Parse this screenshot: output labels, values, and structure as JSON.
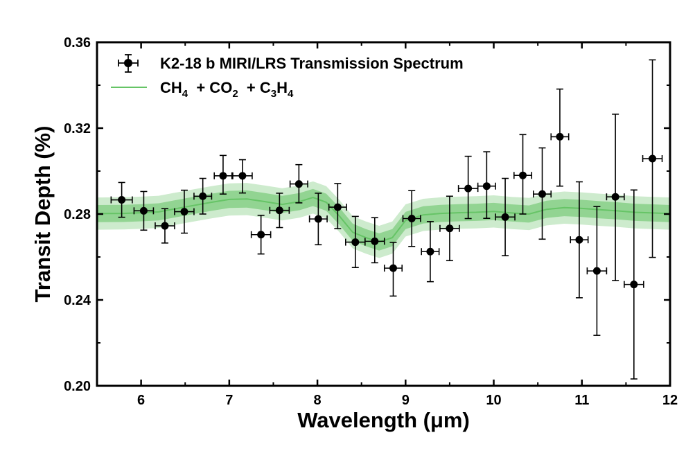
{
  "chart_data": {
    "type": "scatter",
    "xlabel": "Wavelength (μm)",
    "ylabel": "Transit Depth (%)",
    "xlim": [
      5.5,
      12
    ],
    "ylim": [
      0.2,
      0.36
    ],
    "xticks": [
      6,
      7,
      8,
      9,
      10,
      11,
      12
    ],
    "yticks": [
      0.2,
      0.24,
      0.28,
      0.32,
      0.36
    ],
    "ytick_labels": [
      "0.20",
      "0.24",
      "0.28",
      "0.32",
      "0.36"
    ],
    "grid": false,
    "legend_position": "top-left",
    "colors": {
      "data": "#000000",
      "model": "#66c466",
      "band_inner": "#7dcc7d",
      "band_outer": "#cdebcd"
    },
    "series": [
      {
        "name": "K2-18 b MIRI/LRS Transmission Spectrum",
        "kind": "errorbar",
        "x": [
          5.78,
          6.03,
          6.27,
          6.49,
          6.7,
          6.93,
          7.15,
          7.36,
          7.57,
          7.79,
          8.01,
          8.23,
          8.43,
          8.65,
          8.86,
          9.07,
          9.28,
          9.5,
          9.71,
          9.92,
          10.13,
          10.33,
          10.55,
          10.75,
          10.97,
          11.17,
          11.38,
          11.59,
          11.8
        ],
        "y": [
          0.2866,
          0.2815,
          0.2745,
          0.2811,
          0.2883,
          0.2978,
          0.2978,
          0.2704,
          0.2817,
          0.294,
          0.2777,
          0.2832,
          0.2669,
          0.2673,
          0.2548,
          0.2779,
          0.2625,
          0.2733,
          0.2919,
          0.293,
          0.2786,
          0.298,
          0.2893,
          0.316,
          0.268,
          0.2535,
          0.288,
          0.2472,
          0.3058
        ],
        "xerr": [
          0.12,
          0.11,
          0.11,
          0.11,
          0.1,
          0.1,
          0.11,
          0.11,
          0.11,
          0.1,
          0.1,
          0.1,
          0.11,
          0.11,
          0.1,
          0.1,
          0.1,
          0.11,
          0.11,
          0.1,
          0.11,
          0.1,
          0.1,
          0.1,
          0.1,
          0.11,
          0.1,
          0.11,
          0.11
        ],
        "yerr_low": [
          0.0081,
          0.009,
          0.008,
          0.01,
          0.0083,
          0.0085,
          0.008,
          0.009,
          0.008,
          0.0088,
          0.012,
          0.01,
          0.0118,
          0.01,
          0.013,
          0.013,
          0.014,
          0.015,
          0.014,
          0.015,
          0.018,
          0.018,
          0.021,
          0.023,
          0.027,
          0.03,
          0.039,
          0.044,
          0.046
        ],
        "yerr_high": [
          0.0081,
          0.009,
          0.008,
          0.01,
          0.0083,
          0.0095,
          0.0075,
          0.009,
          0.008,
          0.009,
          0.012,
          0.011,
          0.012,
          0.011,
          0.012,
          0.013,
          0.014,
          0.015,
          0.015,
          0.016,
          0.018,
          0.019,
          0.0215,
          0.0222,
          0.027,
          0.03,
          0.0385,
          0.044,
          0.046
        ]
      },
      {
        "name": "CH4 + CO2 + C3H4",
        "kind": "model",
        "x": [
          5.5,
          5.8,
          6.0,
          6.2,
          6.5,
          6.8,
          7.0,
          7.2,
          7.4,
          7.6,
          7.8,
          7.95,
          8.1,
          8.25,
          8.4,
          8.55,
          8.7,
          8.85,
          9.0,
          9.2,
          9.4,
          9.6,
          9.8,
          10.0,
          10.2,
          10.4,
          10.6,
          10.8,
          11.0,
          11.2,
          11.4,
          11.6,
          11.8,
          12.0
        ],
        "median": [
          0.2802,
          0.2803,
          0.2806,
          0.281,
          0.2833,
          0.2855,
          0.2868,
          0.287,
          0.2858,
          0.2845,
          0.2858,
          0.2877,
          0.2855,
          0.279,
          0.2715,
          0.269,
          0.267,
          0.269,
          0.277,
          0.2796,
          0.2803,
          0.2806,
          0.2808,
          0.2812,
          0.2805,
          0.28,
          0.2822,
          0.283,
          0.2826,
          0.282,
          0.2815,
          0.2808,
          0.2805,
          0.2802
        ],
        "band1": 0.004,
        "band2": 0.0075
      }
    ]
  },
  "legend": {
    "items": [
      {
        "label": "K2-18 b MIRI/LRS Transmission Spectrum",
        "symbol": "errorbar-marker"
      },
      {
        "label_parts": [
          "CH",
          "4",
          "  + CO",
          "2",
          "  + C",
          "3",
          "H",
          "4"
        ],
        "symbol": "green-line"
      }
    ]
  }
}
